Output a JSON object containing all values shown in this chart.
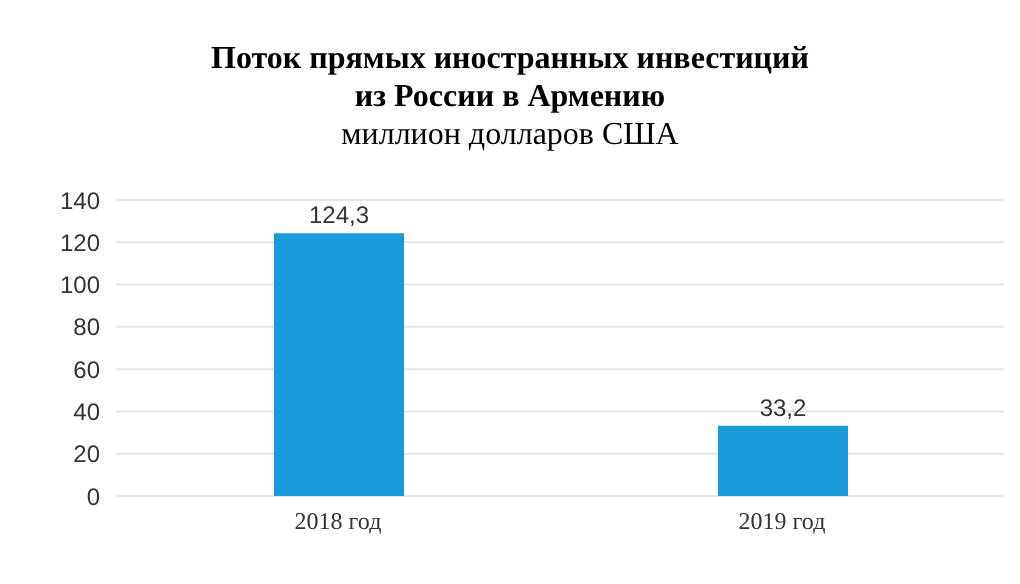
{
  "chart_data": {
    "type": "bar",
    "title": "Поток прямых иностранных инвестиций из России в Армению",
    "subtitle": "миллион долларов США",
    "categories": [
      "2018 год",
      "2019 год"
    ],
    "values": [
      124.3,
      33.2
    ],
    "value_labels": [
      "124,3",
      "33,2"
    ],
    "color": "#1a9ad9",
    "ylim": [
      0,
      140
    ],
    "yticks": [
      0,
      20,
      40,
      60,
      80,
      100,
      120,
      140
    ],
    "grid": "y"
  }
}
